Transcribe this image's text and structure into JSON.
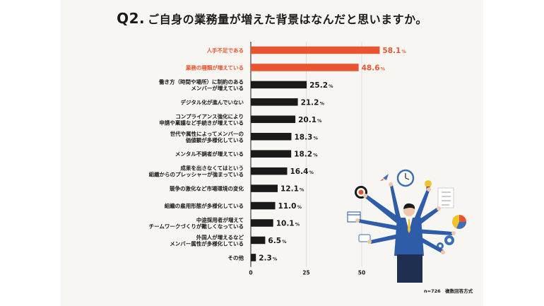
{
  "title": {
    "q": "Q2.",
    "text": "ご自身の業務量が増えた背景はなんだと思いますか。"
  },
  "note": "n=726　複数回答方式",
  "colors": {
    "highlight": "#e95530",
    "bar": "#1a1a1a",
    "grid": "#d9d9d9"
  },
  "chart_data": {
    "type": "bar",
    "orientation": "horizontal",
    "categories": [
      [
        "人手不足である"
      ],
      [
        "業務の種類が増えている"
      ],
      [
        "働き方（時間や場所）に制約のある",
        "メンバーが増えている"
      ],
      [
        "デジタル化が進んでいない"
      ],
      [
        "コンプライアンス強化により",
        "申請や稟議など手続きが増えている"
      ],
      [
        "世代や属性によってメンバーの",
        "価値観が多様化している"
      ],
      [
        "メンタル不調者が増えている"
      ],
      [
        "成果を出さなくてはという",
        "組織からのプレッシャーが強まっている"
      ],
      [
        "競争の激化など市場環境の変化"
      ],
      [
        "組織の雇用形態が多様化している"
      ],
      [
        "中途採用者が増えて",
        "チームワークづくりが難しくなっている"
      ],
      [
        "外国人が増えるなど",
        "メンバー属性が多様化している"
      ],
      [
        "その他"
      ]
    ],
    "values": [
      58.1,
      48.6,
      25.2,
      21.2,
      20.1,
      18.3,
      18.2,
      16.4,
      12.1,
      11.0,
      10.1,
      6.5,
      2.3
    ],
    "value_labels": [
      "58.1",
      "48.6",
      "25.2",
      "21.2",
      "20.1",
      "18.3",
      "18.2",
      "16.4",
      "12.1",
      "11.0",
      "10.1",
      "6.5",
      "2.3"
    ],
    "unit": "%",
    "highlighted": [
      0,
      1
    ],
    "xlim": [
      0,
      60
    ],
    "xticks": [
      0,
      25,
      50
    ],
    "grid": true
  }
}
